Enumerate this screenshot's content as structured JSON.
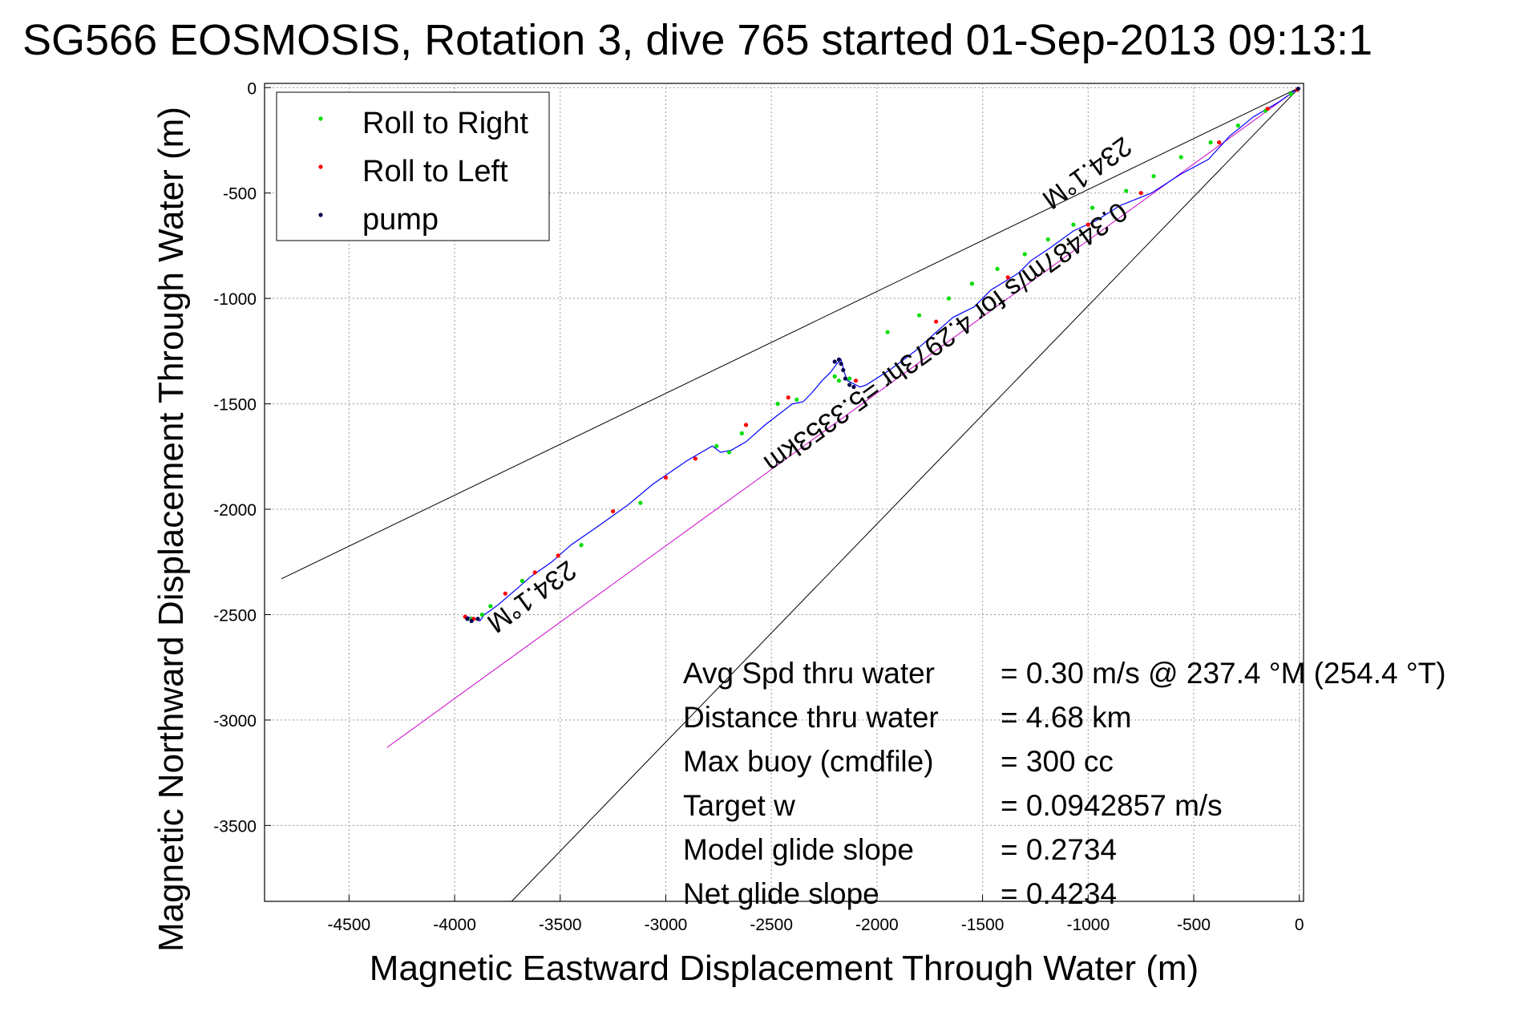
{
  "chart_data": {
    "type": "scatter",
    "title": "SG566 EOSMOSIS, Rotation 3, dive 765 started 01-Sep-2013 09:13:1",
    "xlabel": "Magnetic Eastward Displacement Through Water (m)",
    "ylabel": "Magnetic Northward Displacement Through Water (m)",
    "xlim": [
      -4900,
      20
    ],
    "ylim": [
      -3860,
      20
    ],
    "grid": true,
    "x_ticks": [
      -4500,
      -4000,
      -3500,
      -3000,
      -2500,
      -2000,
      -1500,
      -1000,
      -500,
      0
    ],
    "x_tick_labels": [
      "-4500",
      "-4000",
      "-3500",
      "-3000",
      "-2500",
      "-2000",
      "-1500",
      "-1000",
      "-500",
      "0"
    ],
    "y_ticks": [
      0,
      -500,
      -1000,
      -1500,
      -2000,
      -2500,
      -3000,
      -3500
    ],
    "y_tick_labels": [
      "0",
      "-500",
      "-1000",
      "-1500",
      "-2000",
      "-2500",
      "-3000",
      "-3500"
    ],
    "legend": {
      "position": "top-left",
      "entries": [
        {
          "label": "Roll to Right",
          "color": "#00dd00"
        },
        {
          "label": "Roll to Left",
          "color": "#ff0000"
        },
        {
          "label": "pump",
          "color": "#000050"
        }
      ]
    },
    "track": {
      "name": "glider track",
      "color": "#0000ff",
      "x": [
        0,
        -100,
        -220,
        -280,
        -330,
        -430,
        -560,
        -700,
        -850,
        -960,
        -1070,
        -1180,
        -1270,
        -1330,
        -1460,
        -1540,
        -1640,
        -1720,
        -1820,
        -1940,
        -2050,
        -2080,
        -2140,
        -2155,
        -2170,
        -2190,
        -2220,
        -2260,
        -2310,
        -2350,
        -2400,
        -2530,
        -2620,
        -2690,
        -2740,
        -2780,
        -2900,
        -3060,
        -3180,
        -3320,
        -3450,
        -3540,
        -3640,
        -3720,
        -3790,
        -3830,
        -3860,
        -3880,
        -3900,
        -3940
      ],
      "y": [
        0,
        -70,
        -140,
        -190,
        -230,
        -340,
        -410,
        -500,
        -560,
        -630,
        -680,
        -760,
        -820,
        -880,
        -960,
        -1040,
        -1090,
        -1160,
        -1250,
        -1340,
        -1410,
        -1420,
        -1390,
        -1350,
        -1290,
        -1310,
        -1350,
        -1390,
        -1450,
        -1490,
        -1500,
        -1600,
        -1680,
        -1720,
        -1730,
        -1700,
        -1770,
        -1880,
        -1980,
        -2080,
        -2170,
        -2250,
        -2320,
        -2390,
        -2450,
        -2480,
        -2500,
        -2530,
        -2520,
        -2510
      ]
    },
    "roll_right_points": {
      "x": [
        -40,
        -160,
        -290,
        -420,
        -560,
        -690,
        -820,
        -980,
        -1070,
        -1190,
        -1300,
        -1430,
        -1550,
        -1660,
        -1800,
        -1950,
        -2130,
        -2180,
        -2200,
        -2380,
        -2470,
        -2640,
        -2700,
        -2760,
        -3120,
        -3400,
        -3680,
        -3830,
        -3870,
        -3920
      ],
      "y": [
        -30,
        -110,
        -180,
        -260,
        -330,
        -420,
        -490,
        -570,
        -650,
        -720,
        -790,
        -860,
        -930,
        -1000,
        -1080,
        -1160,
        -1380,
        -1390,
        -1370,
        -1480,
        -1500,
        -1640,
        -1730,
        -1700,
        -1970,
        -2170,
        -2340,
        -2460,
        -2500,
        -2520
      ]
    },
    "roll_left_points": {
      "x": [
        -10,
        -150,
        -380,
        -750,
        -1000,
        -1380,
        -1720,
        -2100,
        -2420,
        -2620,
        -2860,
        -3000,
        -3250,
        -3510,
        -3620,
        -3760,
        -3910,
        -3950
      ],
      "y": [
        -10,
        -100,
        -260,
        -500,
        -650,
        -900,
        -1110,
        -1390,
        -1470,
        -1600,
        -1760,
        -1850,
        -2010,
        -2220,
        -2300,
        -2400,
        -2520,
        -2510
      ]
    },
    "pump_points": {
      "x": [
        -5,
        -2110,
        -2130,
        -2150,
        -2160,
        -2170,
        -2180,
        -2200,
        -3890,
        -3920,
        -3940
      ],
      "y": [
        -5,
        -1420,
        -1410,
        -1380,
        -1340,
        -1310,
        -1290,
        -1300,
        -2520,
        -2530,
        -2520
      ]
    },
    "guide_lines": [
      {
        "name": "upper bound",
        "color": "#000000",
        "x": [
          0,
          -4820
        ],
        "y": [
          0,
          -2330
        ]
      },
      {
        "name": "lower bound",
        "color": "#000000",
        "x": [
          0,
          -3730
        ],
        "y": [
          0,
          -3860
        ]
      },
      {
        "name": "net track",
        "color": "#cc00cc",
        "x": [
          0,
          -4320
        ],
        "y": [
          0,
          -3130
        ]
      }
    ],
    "rotated_annotations": [
      {
        "text": "234.1°M",
        "x": -1030,
        "y": -370
      },
      {
        "text": "0.34487m/s for 4.2973hr =5.3353km",
        "x": -1700,
        "y": -1150
      },
      {
        "text": "234.1°M",
        "x": -3660,
        "y": -2380
      }
    ],
    "stats": [
      {
        "label": "Avg Spd thru water",
        "value": "=  0.30 m/s @ 237.4  °M (254.4 °T)"
      },
      {
        "label": "Distance thru water",
        "value": "=  4.68 km"
      },
      {
        "label": "Max buoy (cmdfile)",
        "value": "= 300 cc"
      },
      {
        "label": "Target w",
        "value": "= 0.0942857 m/s"
      },
      {
        "label": "Model glide slope",
        "value": "= 0.2734"
      },
      {
        "label": "Net glide slope",
        "value": "= 0.4234"
      }
    ]
  }
}
